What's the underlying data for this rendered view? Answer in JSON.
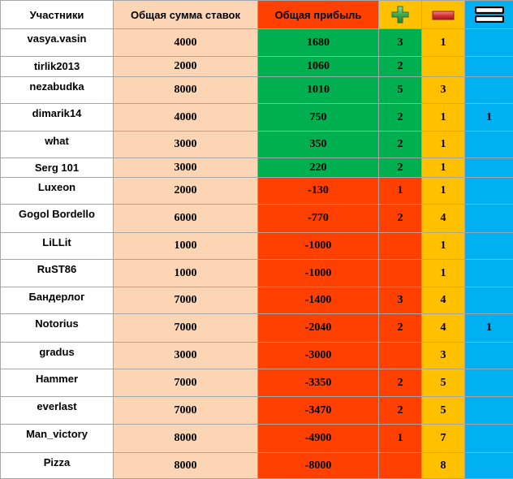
{
  "header": {
    "participants": "Участники",
    "total_bets": "Общая сумма ставок",
    "total_profit": "Общая прибыль",
    "plus_icon": "plus-icon",
    "minus_icon": "minus-icon",
    "equals_icon": "equals-icon"
  },
  "colors": {
    "positive": "#00b050",
    "negative": "#ff4000",
    "bets": "#fcd5b4",
    "minus_col": "#ffc000",
    "equals_col": "#00b0f0"
  },
  "rows": [
    {
      "name": "vasya.vasin",
      "sum": "4000",
      "profit": "1680",
      "plus": "3",
      "minus": "1",
      "eq": ""
    },
    {
      "name": "tirlik2013",
      "sum": "2000",
      "profit": "1060",
      "plus": "2",
      "minus": "",
      "eq": ""
    },
    {
      "name": "nezabudka",
      "sum": "8000",
      "profit": "1010",
      "plus": "5",
      "minus": "3",
      "eq": ""
    },
    {
      "name": "dimarik14",
      "sum": "4000",
      "profit": "750",
      "plus": "2",
      "minus": "1",
      "eq": "1"
    },
    {
      "name": "what",
      "sum": "3000",
      "profit": "350",
      "plus": "2",
      "minus": "1",
      "eq": ""
    },
    {
      "name": "Serg 101",
      "sum": "3000",
      "profit": "220",
      "plus": "2",
      "minus": "1",
      "eq": ""
    },
    {
      "name": "Luxeon",
      "sum": "2000",
      "profit": "-130",
      "plus": "1",
      "minus": "1",
      "eq": ""
    },
    {
      "name": "Gogol Bordello",
      "sum": "6000",
      "profit": "-770",
      "plus": "2",
      "minus": "4",
      "eq": ""
    },
    {
      "name": "LiLLit",
      "sum": "1000",
      "profit": "-1000",
      "plus": "",
      "minus": "1",
      "eq": ""
    },
    {
      "name": "RuST86",
      "sum": "1000",
      "profit": "-1000",
      "plus": "",
      "minus": "1",
      "eq": ""
    },
    {
      "name": "Бандерлог",
      "sum": "7000",
      "profit": "-1400",
      "plus": "3",
      "minus": "4",
      "eq": ""
    },
    {
      "name": "Notorius",
      "sum": "7000",
      "profit": "-2040",
      "plus": "2",
      "minus": "4",
      "eq": "1"
    },
    {
      "name": "gradus",
      "sum": "3000",
      "profit": "-3000",
      "plus": "",
      "minus": "3",
      "eq": ""
    },
    {
      "name": "Hammer",
      "sum": "7000",
      "profit": "-3350",
      "plus": "2",
      "minus": "5",
      "eq": ""
    },
    {
      "name": "everlast",
      "sum": "7000",
      "profit": "-3470",
      "plus": "2",
      "minus": "5",
      "eq": ""
    },
    {
      "name": "Man_victory",
      "sum": "8000",
      "profit": "-4900",
      "plus": "1",
      "minus": "7",
      "eq": ""
    },
    {
      "name": "Pizza",
      "sum": "8000",
      "profit": "-8000",
      "plus": "",
      "minus": "8",
      "eq": ""
    }
  ]
}
